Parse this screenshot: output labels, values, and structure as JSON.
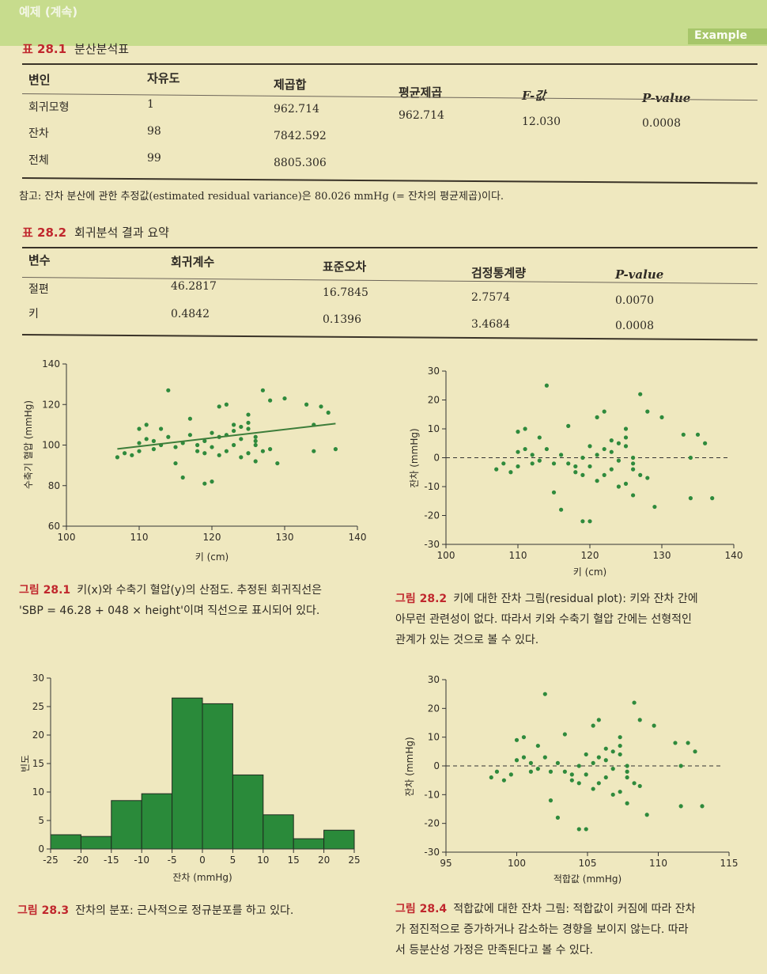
{
  "header": {
    "title": "예제 (계속)",
    "badge": "Example"
  },
  "table1": {
    "label": "표 28.1",
    "title": "분산분석표",
    "headers": [
      "변인",
      "자유도",
      "제곱합",
      "평균제곱",
      "F-값",
      "P-value"
    ],
    "rows": [
      [
        "회귀모형",
        "1",
        "962.714",
        "962.714",
        "12.030",
        "0.0008"
      ],
      [
        "잔차",
        "98",
        "7842.592",
        "",
        "",
        ""
      ],
      [
        "전체",
        "99",
        "8805.306",
        "",
        "",
        ""
      ]
    ],
    "note": "참고: 잔차 분산에 관한 추정값(estimated residual variance)은 80.026 mmHg (= 잔차의 평균제곱)이다."
  },
  "table2": {
    "label": "표 28.2",
    "title": "회귀분석 결과 요약",
    "headers": [
      "변수",
      "회귀계수",
      "표준오차",
      "검정통계량",
      "P-value"
    ],
    "rows": [
      [
        "절편",
        "46.2817",
        "16.7845",
        "2.7574",
        "0.0070"
      ],
      [
        "키",
        "0.4842",
        "0.1396",
        "3.4684",
        "0.0008"
      ]
    ]
  },
  "captions": {
    "fig1": {
      "label": "그림 28.1",
      "lines": [
        "키(x)와 수축기 혈압(y)의 산점도. 추정된 회귀직선은",
        "'SBP = 46.28 + 048 × height'이며 직선으로 표시되어 있다."
      ]
    },
    "fig2": {
      "label": "그림 28.2",
      "lines": [
        "키에 대한 잔차 그림(residual plot): 키와 잔차 간에",
        "아무런 관련성이 없다. 따라서 키와 수축기 혈압 간에는 선형적인",
        "관계가 있는 것으로 볼 수 있다."
      ]
    },
    "fig3": {
      "label": "그림 28.3",
      "lines": [
        "잔차의 분포: 근사적으로 정규분포를 하고 있다."
      ]
    },
    "fig4": {
      "label": "그림 28.4",
      "lines": [
        "적합값에 대한 잔차 그림: 적합값이 커짐에 따라 잔차",
        "가 점진적으로 증가하거나 감소하는 경향을 보이지 않는다. 따라",
        "서 등분산성 가정은 만족된다고 볼 수 있다."
      ]
    }
  },
  "colors": {
    "points": "#2f8a3c",
    "bars": "#2a8a3a",
    "bar_edge": "#1f2a1f",
    "fit_line": "#3d7d3a"
  },
  "chart_data": [
    {
      "type": "scatter",
      "xlabel": "키 (cm)",
      "ylabel": "수축기 혈압 (mmHg)",
      "xlim": [
        100,
        140
      ],
      "ylim": [
        60,
        140
      ],
      "xticks": [
        100,
        110,
        120,
        130,
        140
      ],
      "yticks": [
        60,
        80,
        100,
        120,
        140
      ],
      "fit_line": {
        "x": [
          107,
          137
        ],
        "y": [
          98.1,
          110.6
        ]
      },
      "points": [
        [
          107,
          94
        ],
        [
          108,
          96
        ],
        [
          109,
          95
        ],
        [
          110,
          97
        ],
        [
          110,
          101
        ],
        [
          110,
          108
        ],
        [
          111,
          110
        ],
        [
          111,
          103
        ],
        [
          112,
          98
        ],
        [
          112,
          102
        ],
        [
          113,
          108
        ],
        [
          113,
          100
        ],
        [
          114,
          104
        ],
        [
          114,
          127
        ],
        [
          115,
          99
        ],
        [
          115,
          91
        ],
        [
          116,
          84
        ],
        [
          116,
          101
        ],
        [
          117,
          105
        ],
        [
          117,
          113
        ],
        [
          118,
          100
        ],
        [
          118,
          97
        ],
        [
          119,
          102
        ],
        [
          119,
          81
        ],
        [
          119,
          96
        ],
        [
          120,
          82
        ],
        [
          120,
          106
        ],
        [
          120,
          99
        ],
        [
          121,
          104
        ],
        [
          121,
          95
        ],
        [
          121,
          119
        ],
        [
          122,
          120
        ],
        [
          122,
          97
        ],
        [
          122,
          105
        ],
        [
          123,
          107
        ],
        [
          123,
          110
        ],
        [
          123,
          100
        ],
        [
          124,
          103
        ],
        [
          124,
          109
        ],
        [
          124,
          94
        ],
        [
          125,
          96
        ],
        [
          125,
          108
        ],
        [
          125,
          115
        ],
        [
          125,
          111
        ],
        [
          126,
          92
        ],
        [
          126,
          104
        ],
        [
          126,
          102
        ],
        [
          126,
          100
        ],
        [
          127,
          97
        ],
        [
          127,
          127
        ],
        [
          128,
          122
        ],
        [
          128,
          98
        ],
        [
          129,
          91
        ],
        [
          130,
          123
        ],
        [
          133,
          120
        ],
        [
          134,
          110
        ],
        [
          134,
          97
        ],
        [
          135,
          119
        ],
        [
          136,
          116
        ],
        [
          137,
          98
        ]
      ]
    },
    {
      "type": "scatter",
      "xlabel": "키 (cm)",
      "ylabel": "잔차 (mmHg)",
      "xlim": [
        100,
        140
      ],
      "ylim": [
        -30,
        30
      ],
      "xticks": [
        100,
        110,
        120,
        130,
        140
      ],
      "yticks": [
        -30,
        -20,
        -10,
        0,
        10,
        20,
        30
      ],
      "reference_line": 0,
      "points": [
        [
          107,
          -4
        ],
        [
          108,
          -2
        ],
        [
          109,
          -5
        ],
        [
          110,
          -3
        ],
        [
          110,
          2
        ],
        [
          110,
          9
        ],
        [
          111,
          10
        ],
        [
          111,
          3
        ],
        [
          112,
          -2
        ],
        [
          112,
          1
        ],
        [
          113,
          7
        ],
        [
          113,
          -1
        ],
        [
          114,
          3
        ],
        [
          114,
          25
        ],
        [
          115,
          -2
        ],
        [
          115,
          -12
        ],
        [
          116,
          -18
        ],
        [
          116,
          1
        ],
        [
          117,
          -2
        ],
        [
          117,
          11
        ],
        [
          118,
          -3
        ],
        [
          118,
          -5
        ],
        [
          119,
          0
        ],
        [
          119,
          -22
        ],
        [
          119,
          -6
        ],
        [
          120,
          -22
        ],
        [
          120,
          4
        ],
        [
          120,
          -3
        ],
        [
          121,
          1
        ],
        [
          121,
          -8
        ],
        [
          121,
          14
        ],
        [
          122,
          16
        ],
        [
          122,
          -6
        ],
        [
          122,
          3
        ],
        [
          123,
          2
        ],
        [
          123,
          6
        ],
        [
          123,
          -4
        ],
        [
          124,
          -1
        ],
        [
          124,
          5
        ],
        [
          124,
          -10
        ],
        [
          125,
          -9
        ],
        [
          125,
          4
        ],
        [
          125,
          10
        ],
        [
          125,
          7
        ],
        [
          126,
          -13
        ],
        [
          126,
          0
        ],
        [
          126,
          -2
        ],
        [
          126,
          -4
        ],
        [
          127,
          -6
        ],
        [
          127,
          22
        ],
        [
          128,
          16
        ],
        [
          128,
          -7
        ],
        [
          129,
          -17
        ],
        [
          130,
          14
        ],
        [
          133,
          8
        ],
        [
          134,
          0
        ],
        [
          134,
          -14
        ],
        [
          135,
          8
        ],
        [
          136,
          5
        ],
        [
          137,
          -14
        ]
      ]
    },
    {
      "type": "bar",
      "xlabel": "잔차 (mmHg)",
      "ylabel": "빈도",
      "xlim": [
        -25,
        25
      ],
      "ylim": [
        0,
        30
      ],
      "xticks": [
        -25,
        -20,
        -15,
        -10,
        -5,
        0,
        5,
        10,
        15,
        20,
        25
      ],
      "yticks": [
        0,
        5,
        10,
        15,
        20,
        25,
        30
      ],
      "bin_edges": [
        -25,
        -20,
        -15,
        -10,
        -5,
        0,
        5,
        10,
        15,
        20,
        25
      ],
      "values": [
        2.5,
        2.2,
        8.5,
        9.7,
        26.5,
        25.5,
        13,
        6,
        1.8,
        3.3
      ]
    },
    {
      "type": "scatter",
      "xlabel": "적합값 (mmHg)",
      "ylabel": "잔차 (mmHg)",
      "xlim": [
        95,
        115
      ],
      "ylim": [
        -30,
        30
      ],
      "xticks": [
        95,
        100,
        105,
        110,
        115
      ],
      "yticks": [
        -30,
        -20,
        -10,
        0,
        10,
        20,
        30
      ],
      "reference_line": 0,
      "points": [
        [
          98.2,
          -4
        ],
        [
          98.6,
          -2
        ],
        [
          99.1,
          -5
        ],
        [
          99.6,
          -3
        ],
        [
          100.0,
          2
        ],
        [
          100.0,
          9
        ],
        [
          100.5,
          10
        ],
        [
          100.5,
          3
        ],
        [
          101.0,
          -2
        ],
        [
          101.0,
          1
        ],
        [
          101.5,
          7
        ],
        [
          101.5,
          -1
        ],
        [
          102.0,
          3
        ],
        [
          102.0,
          25
        ],
        [
          102.4,
          -2
        ],
        [
          102.4,
          -12
        ],
        [
          102.9,
          -18
        ],
        [
          102.9,
          1
        ],
        [
          103.4,
          -2
        ],
        [
          103.4,
          11
        ],
        [
          103.9,
          -3
        ],
        [
          103.9,
          -5
        ],
        [
          104.4,
          0
        ],
        [
          104.4,
          -22
        ],
        [
          104.4,
          -6
        ],
        [
          104.9,
          -22
        ],
        [
          104.9,
          4
        ],
        [
          104.9,
          -3
        ],
        [
          105.4,
          1
        ],
        [
          105.4,
          -8
        ],
        [
          105.4,
          14
        ],
        [
          105.8,
          16
        ],
        [
          105.8,
          -6
        ],
        [
          105.8,
          3
        ],
        [
          106.3,
          2
        ],
        [
          106.3,
          6
        ],
        [
          106.3,
          -4
        ],
        [
          106.8,
          -1
        ],
        [
          106.8,
          5
        ],
        [
          106.8,
          -10
        ],
        [
          107.3,
          -9
        ],
        [
          107.3,
          4
        ],
        [
          107.3,
          10
        ],
        [
          107.3,
          7
        ],
        [
          107.8,
          -13
        ],
        [
          107.8,
          0
        ],
        [
          107.8,
          -2
        ],
        [
          107.8,
          -4
        ],
        [
          108.3,
          -6
        ],
        [
          108.3,
          22
        ],
        [
          108.7,
          16
        ],
        [
          108.7,
          -7
        ],
        [
          109.2,
          -17
        ],
        [
          109.7,
          14
        ],
        [
          111.2,
          8
        ],
        [
          111.6,
          0
        ],
        [
          111.6,
          -14
        ],
        [
          112.1,
          8
        ],
        [
          112.6,
          5
        ],
        [
          113.1,
          -14
        ]
      ]
    }
  ]
}
